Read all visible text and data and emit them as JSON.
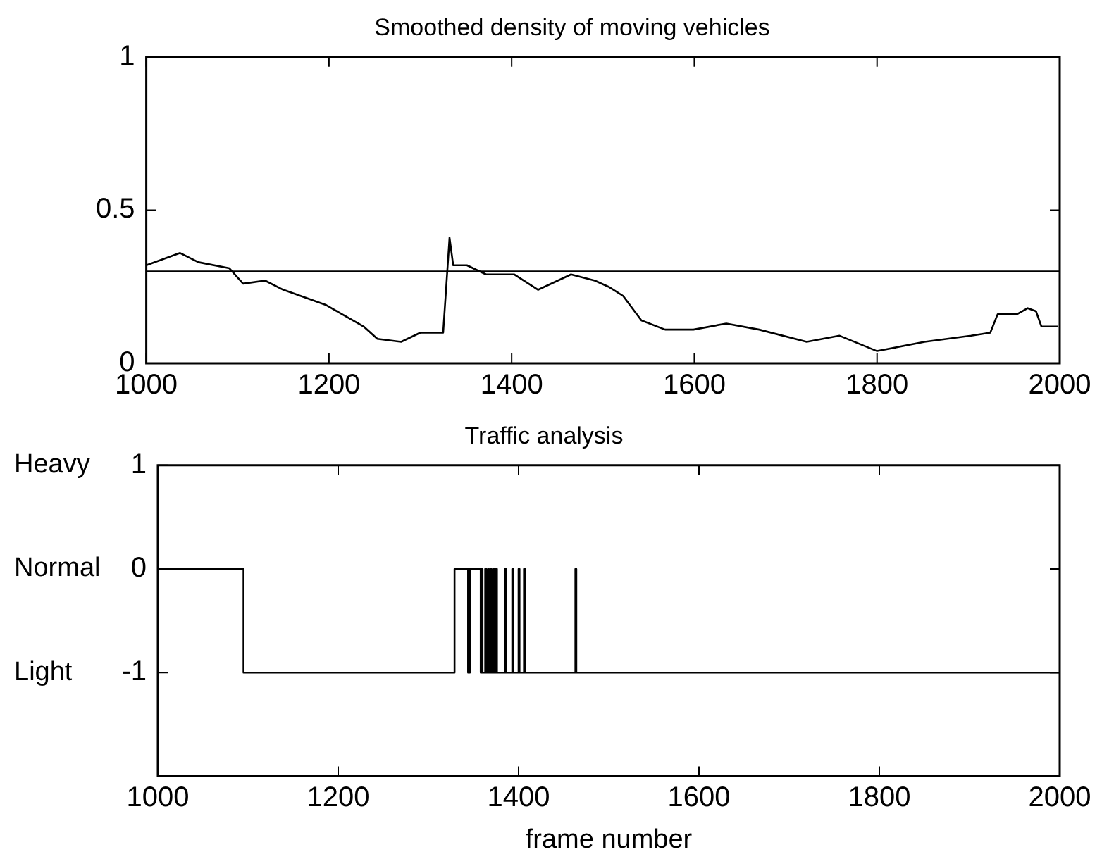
{
  "chart_data": [
    {
      "type": "line",
      "title": "Smoothed density of moving vehicles",
      "x": [
        1000,
        1037,
        1057,
        1091,
        1106,
        1130,
        1150,
        1197,
        1238,
        1253,
        1279,
        1300,
        1325,
        1332,
        1336,
        1351,
        1372,
        1403,
        1429,
        1465,
        1491,
        1506,
        1522,
        1542,
        1568,
        1599,
        1635,
        1671,
        1723,
        1759,
        1800,
        1852,
        1903,
        1924,
        1932,
        1953,
        1965,
        1974,
        1980,
        1998
      ],
      "series": [
        {
          "color": "#000000",
          "values": [
            0.32,
            0.36,
            0.33,
            0.31,
            0.26,
            0.27,
            0.24,
            0.19,
            0.12,
            0.08,
            0.07,
            0.1,
            0.1,
            0.41,
            0.32,
            0.32,
            0.29,
            0.29,
            0.24,
            0.29,
            0.27,
            0.25,
            0.22,
            0.14,
            0.11,
            0.11,
            0.13,
            0.11,
            0.07,
            0.09,
            0.04,
            0.07,
            0.09,
            0.1,
            0.16,
            0.16,
            0.18,
            0.17,
            0.12,
            0.12
          ]
        }
      ],
      "xlim": [
        1000,
        2000
      ],
      "xticks": [
        1000,
        1200,
        1400,
        1600,
        1800,
        2000
      ],
      "ylim": [
        0,
        1
      ],
      "yticks": [
        0,
        0.5,
        1
      ],
      "ref_lines": [
        {
          "axis": "y",
          "value": 0.3,
          "color": "#000000"
        }
      ],
      "grid": false,
      "legend": false
    },
    {
      "type": "step",
      "title": "Traffic analysis",
      "xlabel": "frame number",
      "x": [
        1000,
        1095,
        1329,
        1344,
        1346,
        1358,
        1359,
        1360,
        1363,
        1364,
        1366,
        1367,
        1369,
        1370,
        1372,
        1373,
        1375,
        1376,
        1385,
        1386,
        1393,
        1394,
        1400,
        1401,
        1406,
        1407,
        1463,
        1464,
        2000
      ],
      "series": [
        {
          "color": "#000000",
          "values": [
            0,
            -1,
            0,
            -1,
            0,
            -1,
            0,
            -1,
            0,
            -1,
            0,
            -1,
            0,
            -1,
            0,
            -1,
            0,
            -1,
            0,
            -1,
            0,
            -1,
            0,
            -1,
            0,
            -1,
            0,
            -1,
            -1
          ]
        }
      ],
      "xlim": [
        1000,
        2000
      ],
      "xticks": [
        1000,
        1200,
        1400,
        1600,
        1800,
        2000
      ],
      "ylim": [
        -2,
        1
      ],
      "yticks": [
        -1,
        0,
        1
      ],
      "annotations": [
        "Heavy",
        "Normal",
        "Light"
      ],
      "grid": false,
      "legend": false
    }
  ]
}
